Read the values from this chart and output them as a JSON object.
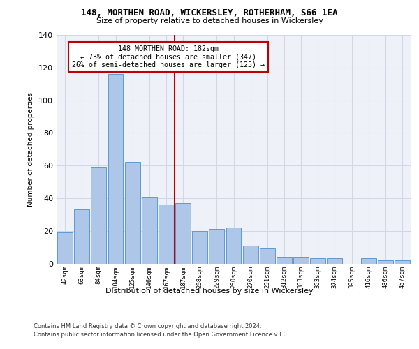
{
  "title_line1": "148, MORTHEN ROAD, WICKERSLEY, ROTHERHAM, S66 1EA",
  "title_line2": "Size of property relative to detached houses in Wickersley",
  "xlabel": "Distribution of detached houses by size in Wickersley",
  "ylabel": "Number of detached properties",
  "categories": [
    "42sqm",
    "63sqm",
    "84sqm",
    "104sqm",
    "125sqm",
    "146sqm",
    "167sqm",
    "187sqm",
    "208sqm",
    "229sqm",
    "250sqm",
    "270sqm",
    "291sqm",
    "312sqm",
    "333sqm",
    "353sqm",
    "374sqm",
    "395sqm",
    "416sqm",
    "436sqm",
    "457sqm"
  ],
  "values": [
    19,
    33,
    59,
    116,
    62,
    41,
    36,
    37,
    20,
    21,
    22,
    11,
    9,
    4,
    4,
    3,
    3,
    0,
    3,
    2,
    2
  ],
  "bar_color": "#aec6e8",
  "bar_edge_color": "#5b9bd5",
  "vline_color": "#c00000",
  "annotation_text": "148 MORTHEN ROAD: 182sqm\n← 73% of detached houses are smaller (347)\n26% of semi-detached houses are larger (125) →",
  "annotation_box_color": "#c00000",
  "ylim": [
    0,
    140
  ],
  "yticks": [
    0,
    20,
    40,
    60,
    80,
    100,
    120,
    140
  ],
  "grid_color": "#d0d8e8",
  "background_color": "#eef2f8",
  "footer_line1": "Contains HM Land Registry data © Crown copyright and database right 2024.",
  "footer_line2": "Contains public sector information licensed under the Open Government Licence v3.0."
}
